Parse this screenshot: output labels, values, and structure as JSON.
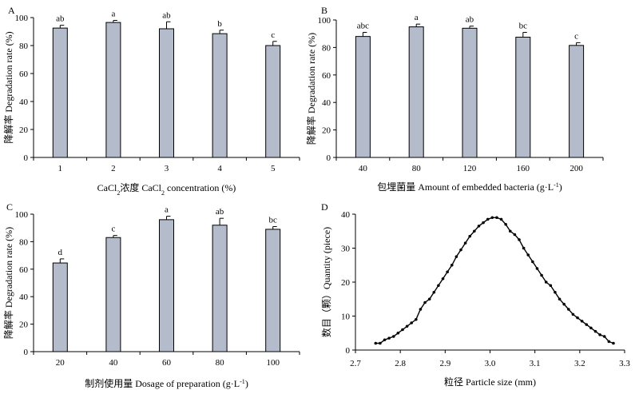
{
  "chart_data": [
    {
      "panel": "A",
      "type": "bar",
      "categories": [
        "1",
        "2",
        "3",
        "4",
        "5"
      ],
      "values": [
        92.5,
        96.5,
        92,
        88.5,
        80
      ],
      "errors": [
        2,
        1.5,
        5,
        2.5,
        3
      ],
      "significance": [
        "ab",
        "a",
        "ab",
        "b",
        "c"
      ],
      "xlabel_parts": [
        "CaCl",
        "2",
        "浓度 CaCl",
        "2",
        " concentration (%)"
      ],
      "ylabel": "降解率 Degradation rate (%)",
      "ylim": [
        0,
        100
      ],
      "yticks": [
        "0",
        "20",
        "40",
        "60",
        "80",
        "100"
      ],
      "bar_color": "#b4bccc",
      "grid": false
    },
    {
      "panel": "B",
      "type": "bar",
      "categories": [
        "40",
        "80",
        "120",
        "160",
        "200"
      ],
      "values": [
        88,
        95,
        94,
        87.5,
        81.5
      ],
      "errors": [
        3,
        2,
        1.5,
        3.5,
        2
      ],
      "significance": [
        "abc",
        "a",
        "ab",
        "bc",
        "c"
      ],
      "xlabel_parts": [
        "包埋菌量 Amount of embedded bacteria (g·L",
        "-1",
        ")"
      ],
      "ylabel": "降解率 Degradation rate (%)",
      "ylim": [
        0,
        100
      ],
      "yticks": [
        "0",
        "20",
        "40",
        "60",
        "80",
        "100"
      ],
      "bar_color": "#b4bccc",
      "grid": false
    },
    {
      "panel": "C",
      "type": "bar",
      "categories": [
        "20",
        "40",
        "60",
        "80",
        "100"
      ],
      "values": [
        64.5,
        83,
        96,
        92,
        89
      ],
      "errors": [
        3,
        1.5,
        2.5,
        5,
        2
      ],
      "significance": [
        "d",
        "c",
        "a",
        "ab",
        "bc"
      ],
      "xlabel_parts": [
        "制剂使用量 Dosage of preparation (g·L",
        "-1",
        ")"
      ],
      "ylabel": "降解率 Degradation rate (%)",
      "ylim": [
        0,
        100
      ],
      "yticks": [
        "0",
        "20",
        "40",
        "60",
        "80",
        "100"
      ],
      "bar_color": "#b4bccc",
      "grid": false
    },
    {
      "panel": "D",
      "type": "line",
      "x": [
        2.745,
        2.755,
        2.765,
        2.775,
        2.785,
        2.795,
        2.805,
        2.815,
        2.825,
        2.835,
        2.845,
        2.855,
        2.865,
        2.875,
        2.885,
        2.895,
        2.905,
        2.915,
        2.925,
        2.935,
        2.945,
        2.955,
        2.965,
        2.975,
        2.985,
        2.995,
        3.005,
        3.015,
        3.025,
        3.035,
        3.045,
        3.055,
        3.065,
        3.075,
        3.085,
        3.095,
        3.105,
        3.115,
        3.125,
        3.135,
        3.145,
        3.155,
        3.165,
        3.175,
        3.185,
        3.195,
        3.205,
        3.215,
        3.225,
        3.235,
        3.245,
        3.255,
        3.265,
        3.275
      ],
      "y": [
        2,
        2,
        3,
        3.5,
        4,
        5,
        6,
        7,
        8,
        9,
        12,
        14,
        15,
        17,
        19,
        21,
        23,
        25,
        27.5,
        29.5,
        31.5,
        33.5,
        35,
        36.5,
        37.5,
        38.5,
        39,
        39,
        38.5,
        37,
        35,
        34,
        32.5,
        30,
        28,
        26,
        24,
        22,
        20,
        19,
        17,
        15,
        13.5,
        12,
        10.5,
        9.5,
        8.5,
        7.5,
        6.5,
        5.5,
        4.5,
        4,
        2.5,
        2
      ],
      "xlabel": "粒径 Particle size (mm)",
      "ylabel": "数目（颗）Quantity (piece)",
      "xlim": [
        2.7,
        3.3
      ],
      "ylim": [
        0,
        40
      ],
      "xticks": [
        "2.7",
        "2.8",
        "2.9",
        "3.0",
        "3.1",
        "3.2",
        "3.3"
      ],
      "yticks": [
        "0",
        "10",
        "20",
        "30",
        "40"
      ],
      "grid": false
    }
  ]
}
